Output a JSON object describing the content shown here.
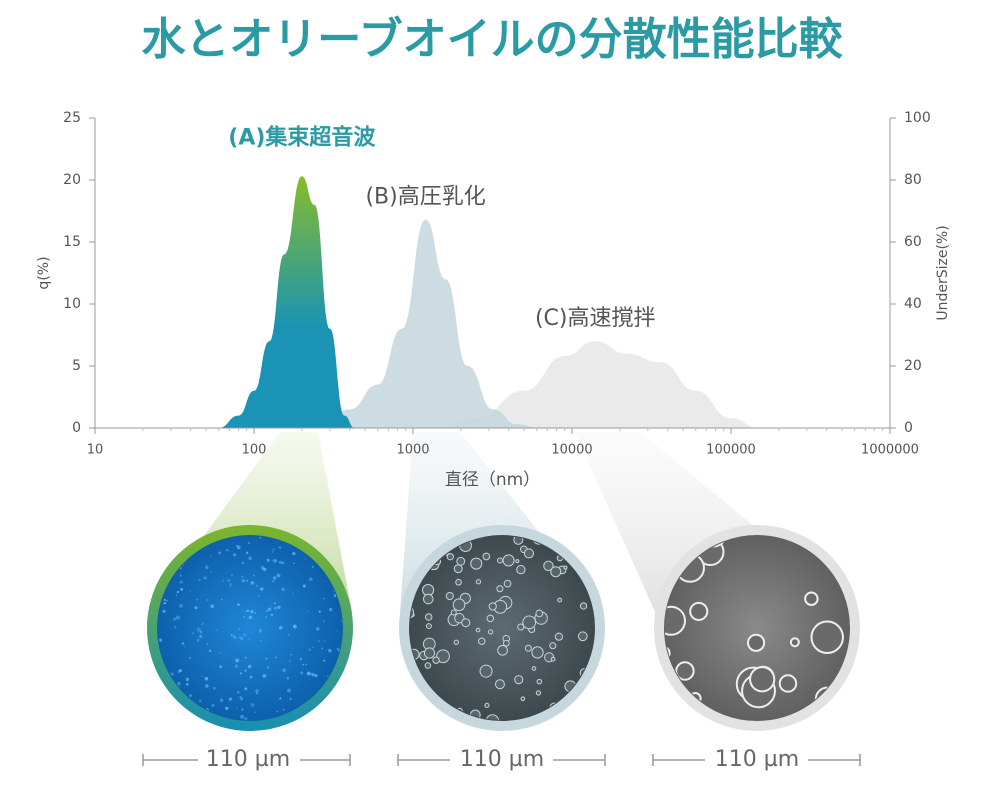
{
  "chart_data": {
    "type": "area",
    "title": "水とオリーブオイルの分散性能比較",
    "xlabel": "直径（nm）",
    "ylabel": "q(%)",
    "y2label": "UnderSize(%)",
    "xscale": "log",
    "xlim": [
      10,
      1000000
    ],
    "xticks": [
      10,
      100,
      1000,
      10000,
      100000,
      1000000
    ],
    "ylim": [
      0,
      25
    ],
    "yticks": [
      0,
      5,
      10,
      15,
      20,
      25
    ],
    "y2lim": [
      0,
      100
    ],
    "y2ticks": [
      0,
      20,
      40,
      60,
      80,
      100
    ],
    "series": [
      {
        "name": "(A)集束超音波",
        "color": "#1a93b4",
        "color_top": "#86bc2c",
        "label_color": "#2a9aa5",
        "x": [
          60,
          80,
          100,
          125,
          155,
          200,
          240,
          300,
          370,
          430
        ],
        "values": [
          0,
          1,
          3,
          7,
          14,
          20.3,
          18,
          8,
          1,
          0
        ]
      },
      {
        "name": "(B)高圧乳化",
        "color": "#c4d6dd",
        "label_color": "#555555",
        "x": [
          260,
          400,
          600,
          850,
          1200,
          1600,
          2200,
          3200,
          4500,
          6300
        ],
        "values": [
          0,
          1.5,
          3.5,
          8,
          16.8,
          12,
          5,
          1.5,
          0.3,
          0
        ]
      },
      {
        "name": "(C)高速撹拌",
        "color": "#e6e6e6",
        "label_color": "#555555",
        "x": [
          1300,
          2500,
          5000,
          9000,
          14000,
          22000,
          36000,
          60000,
          100000,
          150000
        ],
        "values": [
          0,
          0.8,
          3,
          5.8,
          7,
          6,
          5.3,
          3,
          0.8,
          0
        ]
      }
    ]
  },
  "micrographs": [
    {
      "scale": "110 µm"
    },
    {
      "scale": "110 µm"
    },
    {
      "scale": "110 µm"
    }
  ]
}
